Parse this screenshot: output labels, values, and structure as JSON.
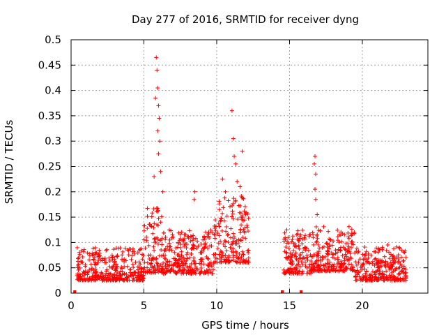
{
  "chart_data": {
    "type": "scatter",
    "title": "Day 277 of 2016, SRMTID for receiver dyng",
    "xlabel": "GPS time / hours",
    "ylabel": "SRMTID / TECUs",
    "xlim": [
      0,
      24.5
    ],
    "ylim": [
      0,
      0.5
    ],
    "xticks": [
      0,
      5,
      10,
      15,
      20
    ],
    "xtick_labels": [
      "0",
      "5",
      "10",
      "15",
      "20"
    ],
    "yticks": [
      0,
      0.05,
      0.1,
      0.15,
      0.2,
      0.25,
      0.3,
      0.35,
      0.4,
      0.45,
      0.5
    ],
    "ytick_labels": [
      "0",
      "0.05",
      "0.1",
      "0.15",
      "0.2",
      "0.25",
      "0.3",
      "0.35",
      "0.4",
      "0.45",
      "0.5"
    ],
    "grid": true,
    "marker": "+",
    "colors": {
      "series": "#ff0000",
      "grid": "#a0a0a0",
      "axis": "#000000"
    },
    "segments": [
      {
        "start": 0.4,
        "end": 5.0,
        "base": 0.045,
        "spread": 0.03
      },
      {
        "start": 5.0,
        "end": 6.3,
        "base": 0.08,
        "spread": 0.06
      },
      {
        "start": 6.3,
        "end": 9.8,
        "base": 0.065,
        "spread": 0.04
      },
      {
        "start": 9.8,
        "end": 12.2,
        "base": 0.1,
        "spread": 0.06
      },
      {
        "start": 14.6,
        "end": 16.5,
        "base": 0.065,
        "spread": 0.04
      },
      {
        "start": 16.5,
        "end": 19.5,
        "base": 0.07,
        "spread": 0.04
      },
      {
        "start": 19.5,
        "end": 23.0,
        "base": 0.045,
        "spread": 0.03
      }
    ],
    "peaks": [
      {
        "x": 5.85,
        "y": 0.465
      },
      {
        "x": 5.9,
        "y": 0.44
      },
      {
        "x": 5.95,
        "y": 0.405
      },
      {
        "x": 5.8,
        "y": 0.385
      },
      {
        "x": 6.0,
        "y": 0.37
      },
      {
        "x": 6.05,
        "y": 0.345
      },
      {
        "x": 5.95,
        "y": 0.32
      },
      {
        "x": 6.1,
        "y": 0.3
      },
      {
        "x": 6.0,
        "y": 0.275
      },
      {
        "x": 6.15,
        "y": 0.24
      },
      {
        "x": 5.7,
        "y": 0.23
      },
      {
        "x": 6.3,
        "y": 0.2
      },
      {
        "x": 8.5,
        "y": 0.2
      },
      {
        "x": 8.45,
        "y": 0.185
      },
      {
        "x": 10.4,
        "y": 0.225
      },
      {
        "x": 10.6,
        "y": 0.2
      },
      {
        "x": 11.05,
        "y": 0.36
      },
      {
        "x": 11.15,
        "y": 0.305
      },
      {
        "x": 11.2,
        "y": 0.27
      },
      {
        "x": 11.3,
        "y": 0.255
      },
      {
        "x": 11.4,
        "y": 0.22
      },
      {
        "x": 11.75,
        "y": 0.28
      },
      {
        "x": 11.6,
        "y": 0.21
      },
      {
        "x": 16.75,
        "y": 0.27
      },
      {
        "x": 16.7,
        "y": 0.255
      },
      {
        "x": 16.8,
        "y": 0.235
      },
      {
        "x": 16.75,
        "y": 0.205
      },
      {
        "x": 16.8,
        "y": 0.185
      },
      {
        "x": 16.9,
        "y": 0.155
      },
      {
        "x": 21.75,
        "y": 0.095
      }
    ],
    "zero_markers": [
      0.25,
      14.5,
      15.8
    ]
  }
}
